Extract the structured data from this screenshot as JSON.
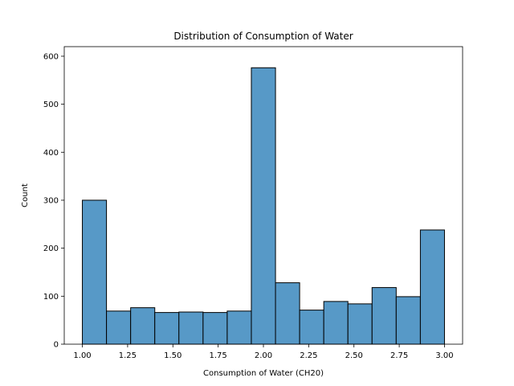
{
  "chart_data": {
    "type": "bar",
    "title": "Distribution of Consumption of Water",
    "xlabel": "Consumption of Water (CH20)",
    "ylabel": "Count",
    "bin_edges": [
      1.0,
      1.1333,
      1.2667,
      1.4,
      1.5333,
      1.6667,
      1.8,
      1.9333,
      2.0667,
      2.2,
      2.3333,
      2.4667,
      2.6,
      2.7333,
      2.8667,
      3.0
    ],
    "values": [
      300,
      69,
      76,
      66,
      67,
      66,
      69,
      576,
      128,
      71,
      89,
      84,
      118,
      99,
      238
    ],
    "xlim": [
      0.9,
      3.1
    ],
    "ylim": [
      0,
      620
    ],
    "xticks": [
      1.0,
      1.25,
      1.5,
      1.75,
      2.0,
      2.25,
      2.5,
      2.75,
      3.0
    ],
    "xtick_labels": [
      "1.00",
      "1.25",
      "1.50",
      "1.75",
      "2.00",
      "2.25",
      "2.50",
      "2.75",
      "3.00"
    ],
    "yticks": [
      0,
      100,
      200,
      300,
      400,
      500,
      600
    ],
    "ytick_labels": [
      "0",
      "100",
      "200",
      "300",
      "400",
      "500",
      "600"
    ],
    "bar_color": "#5799c7",
    "edge_color": "#000000",
    "grid": false,
    "legend": "none"
  }
}
